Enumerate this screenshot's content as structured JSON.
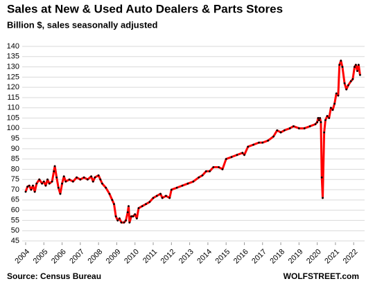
{
  "chart_data": {
    "type": "line",
    "title": "Sales at New & Used Auto Dealers & Parts Stores",
    "subtitle": "Billion $, sales seasonally adjusted",
    "source": "Source: Census Bureau",
    "watermark": "WOLFSTREET.com",
    "color": "#ff0000",
    "marker_color": "#000000",
    "x": [
      2004.0,
      2004.1,
      2004.2,
      2004.3,
      2004.4,
      2004.5,
      2004.6,
      2004.75,
      2004.9,
      2005.0,
      2005.1,
      2005.2,
      2005.3,
      2005.45,
      2005.55,
      2005.6,
      2005.7,
      2005.8,
      2005.9,
      2006.0,
      2006.1,
      2006.2,
      2006.4,
      2006.6,
      2006.8,
      2007.0,
      2007.2,
      2007.4,
      2007.6,
      2007.7,
      2007.8,
      2008.0,
      2008.1,
      2008.2,
      2008.4,
      2008.6,
      2008.75,
      2008.85,
      2008.95,
      2009.05,
      2009.15,
      2009.25,
      2009.4,
      2009.5,
      2009.6,
      2009.65,
      2009.7,
      2009.8,
      2009.9,
      2010.0,
      2010.1,
      2010.2,
      2010.4,
      2010.6,
      2010.8,
      2011.0,
      2011.2,
      2011.4,
      2011.5,
      2011.7,
      2011.9,
      2012.0,
      2012.3,
      2012.6,
      2012.9,
      2013.2,
      2013.5,
      2013.7,
      2013.9,
      2014.1,
      2014.3,
      2014.6,
      2014.8,
      2015.0,
      2015.3,
      2015.6,
      2015.9,
      2016.0,
      2016.2,
      2016.5,
      2016.8,
      2017.0,
      2017.3,
      2017.6,
      2017.8,
      2018.0,
      2018.2,
      2018.5,
      2018.7,
      2019.0,
      2019.3,
      2019.6,
      2019.9,
      2020.0,
      2020.05,
      2020.1,
      2020.15,
      2020.2,
      2020.25,
      2020.3,
      2020.38,
      2020.45,
      2020.55,
      2020.65,
      2020.75,
      2020.85,
      2020.95,
      2021.05,
      2021.15,
      2021.22,
      2021.3,
      2021.38,
      2021.5,
      2021.6,
      2021.7,
      2021.85,
      2021.95,
      2022.05,
      2022.12,
      2022.2,
      2022.27,
      2022.35
    ],
    "values": [
      69,
      71.5,
      72,
      70,
      72,
      69,
      73,
      75,
      73,
      74,
      72,
      75,
      73,
      74,
      79,
      81.5,
      76,
      71,
      68,
      73,
      76.5,
      74,
      75,
      74,
      76,
      75,
      76,
      75,
      76.5,
      74,
      76,
      77,
      75,
      73,
      71,
      68,
      65,
      63,
      57,
      55,
      56,
      54,
      54,
      55,
      59,
      62,
      54,
      57,
      57,
      58,
      56,
      61,
      62,
      63,
      64,
      66,
      67,
      68,
      66,
      67,
      66,
      70,
      71,
      72,
      73,
      74,
      76,
      77,
      79,
      79,
      81,
      81,
      80,
      85,
      86,
      87,
      88,
      87,
      91,
      92,
      93,
      93,
      94,
      96,
      99,
      98,
      99,
      100,
      101,
      100,
      100,
      101,
      102,
      103,
      105,
      104,
      105,
      103,
      76,
      66,
      98,
      104,
      106,
      105,
      110,
      109,
      112,
      117,
      116,
      131,
      133,
      130,
      122,
      119,
      121,
      123,
      124,
      130,
      131,
      128,
      131,
      126
    ],
    "xlim": [
      2004,
      2022.6
    ],
    "xticks": [
      2004,
      2005,
      2006,
      2007,
      2008,
      2009,
      2010,
      2011,
      2012,
      2013,
      2014,
      2015,
      2016,
      2017,
      2018,
      2019,
      2020,
      2021,
      2022
    ],
    "ylim": [
      45,
      140
    ],
    "yticks": [
      45,
      50,
      55,
      60,
      65,
      70,
      75,
      80,
      85,
      90,
      95,
      100,
      105,
      110,
      115,
      120,
      125,
      130,
      135,
      140
    ],
    "grid": true
  }
}
